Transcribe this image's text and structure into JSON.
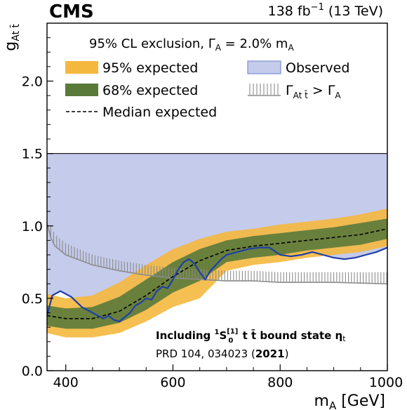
{
  "header": {
    "experiment": "CMS",
    "lumi_value": "138 fb",
    "lumi_exponent": "−1",
    "lumi_energy": " (13 TeV)"
  },
  "legend": {
    "title_main": "95% CL exclusion, ",
    "title_gamma": "Γ",
    "title_gamma_sub": "A",
    "title_eq": " =  2.0% m",
    "title_m_sub": "A",
    "expected95": "95% expected",
    "expected68": "68% expected",
    "median": "Median expected",
    "observed": "Observed",
    "width_gamma": "Γ",
    "width_sub": "At t̄",
    "width_gt": " > Γ",
    "width_sub2": "A"
  },
  "annotation": {
    "line1_pre": "Including ",
    "line1_state": "S",
    "line1_sup_left": "1",
    "line1_sup": "[1]",
    "line1_sub": "0",
    "line1_post": " t t̄ bound state η",
    "line1_eta_sub": "t",
    "line2_pre": "PRD 104, 034023 (",
    "line2_year": "2021",
    "line2_post": ")"
  },
  "colors": {
    "band95": "#f5b83f",
    "band68": "#5a7a3a",
    "observed_fill": "#c4cbeb",
    "observed_line": "#1f3fa8",
    "width_hatch": "#8c8c8c",
    "median": "#000000"
  },
  "chart_data": {
    "type": "line",
    "xlabel": "m",
    "xlabel_sub": "A",
    "xlabel_unit": " [GeV]",
    "ylabel": "g",
    "ylabel_sub": "At t̄",
    "xlim": [
      365,
      1000
    ],
    "ylim": [
      0.0,
      2.4
    ],
    "xticks": [
      400,
      600,
      800,
      1000
    ],
    "yticks": [
      0.0,
      0.5,
      1.0,
      1.5,
      2.0
    ],
    "xticklabels": [
      "400",
      "600",
      "800",
      "1000"
    ],
    "yticklabels": [
      "0.0",
      "0.5",
      "1.0",
      "1.5",
      "2.0"
    ],
    "legend_position": "top",
    "grid": false,
    "observed_upper_limit": 1.5,
    "expected_median": {
      "x": [
        365,
        400,
        450,
        500,
        550,
        600,
        650,
        700,
        750,
        800,
        850,
        900,
        950,
        1000
      ],
      "y": [
        0.38,
        0.36,
        0.36,
        0.41,
        0.52,
        0.65,
        0.76,
        0.83,
        0.86,
        0.88,
        0.9,
        0.92,
        0.94,
        0.98
      ]
    },
    "band68": {
      "x": [
        365,
        400,
        450,
        500,
        550,
        600,
        650,
        700,
        750,
        800,
        850,
        900,
        950,
        1000
      ],
      "low": [
        0.31,
        0.29,
        0.29,
        0.33,
        0.42,
        0.54,
        0.62,
        0.75,
        0.78,
        0.8,
        0.83,
        0.85,
        0.87,
        0.91
      ],
      "high": [
        0.45,
        0.43,
        0.44,
        0.51,
        0.63,
        0.75,
        0.84,
        0.9,
        0.93,
        0.95,
        0.97,
        0.99,
        1.02,
        1.05
      ]
    },
    "band95": {
      "x": [
        365,
        400,
        450,
        500,
        550,
        600,
        650,
        700,
        750,
        800,
        850,
        900,
        950,
        1000
      ],
      "low": [
        0.26,
        0.23,
        0.23,
        0.26,
        0.34,
        0.44,
        0.5,
        0.69,
        0.73,
        0.75,
        0.78,
        0.8,
        0.82,
        0.86
      ],
      "high": [
        0.53,
        0.5,
        0.52,
        0.61,
        0.73,
        0.84,
        0.91,
        0.96,
        0.98,
        1.01,
        1.03,
        1.05,
        1.08,
        1.12
      ]
    },
    "observed": {
      "x": [
        365,
        375,
        390,
        410,
        430,
        450,
        470,
        480,
        490,
        500,
        510,
        520,
        530,
        540,
        550,
        560,
        570,
        580,
        590,
        600,
        610,
        620,
        630,
        640,
        650,
        660,
        670,
        680,
        690,
        700,
        720,
        740,
        760,
        780,
        800,
        820,
        840,
        860,
        880,
        900,
        920,
        940,
        960,
        980,
        1000
      ],
      "y": [
        0.38,
        0.52,
        0.55,
        0.51,
        0.44,
        0.4,
        0.36,
        0.38,
        0.35,
        0.34,
        0.37,
        0.4,
        0.45,
        0.47,
        0.5,
        0.49,
        0.55,
        0.58,
        0.57,
        0.63,
        0.7,
        0.75,
        0.77,
        0.74,
        0.68,
        0.63,
        0.69,
        0.73,
        0.77,
        0.8,
        0.82,
        0.84,
        0.85,
        0.85,
        0.8,
        0.79,
        0.8,
        0.82,
        0.8,
        0.78,
        0.77,
        0.78,
        0.8,
        0.82,
        0.85
      ]
    },
    "width_boundary": {
      "x": [
        365,
        372,
        380,
        400,
        450,
        500,
        550,
        600,
        650,
        700,
        750,
        800,
        900,
        1000
      ],
      "y": [
        1.02,
        0.92,
        0.86,
        0.8,
        0.73,
        0.69,
        0.66,
        0.64,
        0.63,
        0.62,
        0.62,
        0.61,
        0.61,
        0.6
      ]
    },
    "width_hatch_top": {
      "x": [
        365,
        372,
        380,
        400,
        450,
        500,
        550,
        600,
        650,
        700,
        750,
        800,
        900,
        1000
      ],
      "y": [
        1.1,
        1.0,
        0.94,
        0.88,
        0.8,
        0.76,
        0.73,
        0.71,
        0.7,
        0.69,
        0.69,
        0.68,
        0.68,
        0.68
      ]
    }
  }
}
